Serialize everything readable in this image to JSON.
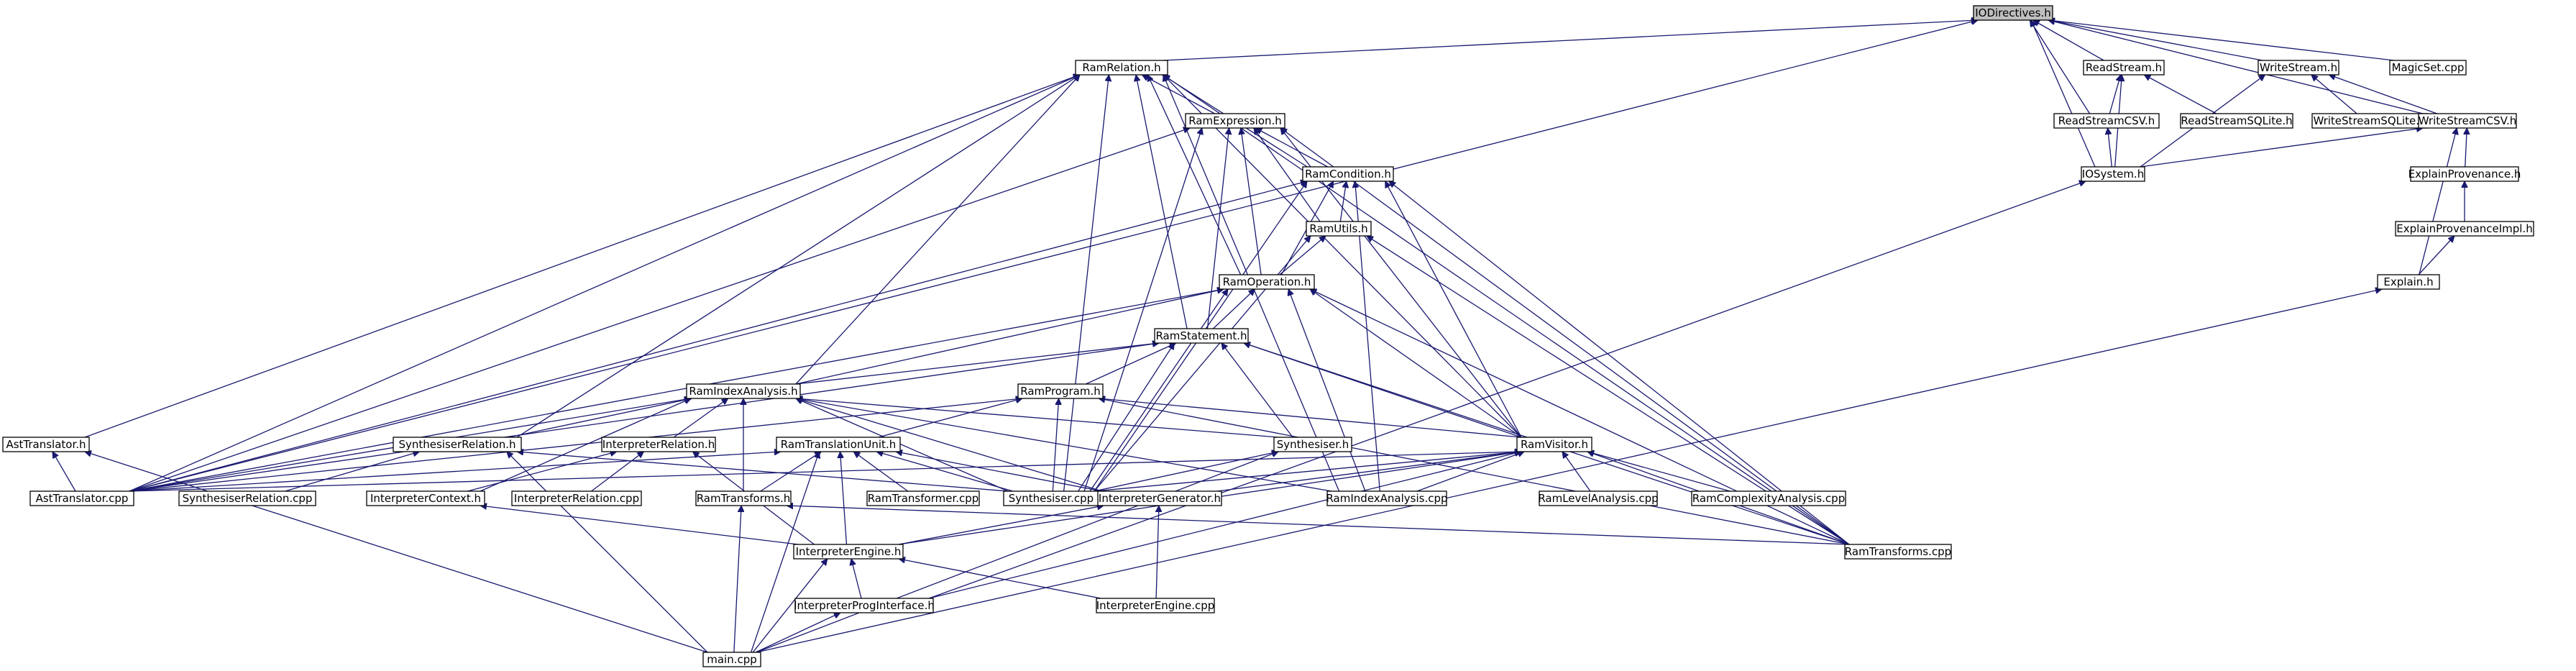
{
  "nodes": [
    {
      "id": "iodirectives",
      "label": "IODirectives.h",
      "root": true
    },
    {
      "id": "ramrelation",
      "label": "RamRelation.h"
    },
    {
      "id": "readstream",
      "label": "ReadStream.h"
    },
    {
      "id": "writestream",
      "label": "WriteStream.h"
    },
    {
      "id": "magicset",
      "label": "MagicSet.cpp"
    },
    {
      "id": "ramexpression",
      "label": "RamExpression.h"
    },
    {
      "id": "readstreamcsv",
      "label": "ReadStreamCSV.h"
    },
    {
      "id": "readstreamsqlite",
      "label": "ReadStreamSQLite.h"
    },
    {
      "id": "writestreamsqlite",
      "label": "WriteStreamSQLite.h"
    },
    {
      "id": "writestreamcsv",
      "label": "WriteStreamCSV.h"
    },
    {
      "id": "ramcondition",
      "label": "RamCondition.h"
    },
    {
      "id": "iosystem",
      "label": "IOSystem.h"
    },
    {
      "id": "explainprovenance",
      "label": "ExplainProvenance.h"
    },
    {
      "id": "ramutils",
      "label": "RamUtils.h"
    },
    {
      "id": "explainprovenanceimpl",
      "label": "ExplainProvenanceImpl.h"
    },
    {
      "id": "ramoperation",
      "label": "RamOperation.h"
    },
    {
      "id": "explain",
      "label": "Explain.h"
    },
    {
      "id": "ramstatement",
      "label": "RamStatement.h"
    },
    {
      "id": "ramindexanalysish",
      "label": "RamIndexAnalysis.h"
    },
    {
      "id": "ramprogram",
      "label": "RamProgram.h"
    },
    {
      "id": "asttranslatorh",
      "label": "AstTranslator.h"
    },
    {
      "id": "synthrelationh",
      "label": "SynthesiserRelation.h"
    },
    {
      "id": "interprelationh",
      "label": "InterpreterRelation.h"
    },
    {
      "id": "ramtranslationunit",
      "label": "RamTranslationUnit.h"
    },
    {
      "id": "synthesiserh",
      "label": "Synthesiser.h"
    },
    {
      "id": "ramvisitor",
      "label": "RamVisitor.h"
    },
    {
      "id": "asttranslatorcpp",
      "label": "AstTranslator.cpp"
    },
    {
      "id": "synthrelationcpp",
      "label": "SynthesiserRelation.cpp"
    },
    {
      "id": "interpcontext",
      "label": "InterpreterContext.h"
    },
    {
      "id": "interprelationcpp",
      "label": "InterpreterRelation.cpp"
    },
    {
      "id": "ramtransformsh",
      "label": "RamTransforms.h"
    },
    {
      "id": "ramtransformercpp",
      "label": "RamTransformer.cpp"
    },
    {
      "id": "synthesisercpp",
      "label": "Synthesiser.cpp"
    },
    {
      "id": "interpgenerator",
      "label": "InterpreterGenerator.h"
    },
    {
      "id": "ramindexanalysiscpp",
      "label": "RamIndexAnalysis.cpp"
    },
    {
      "id": "ramlevelanalysis",
      "label": "RamLevelAnalysis.cpp"
    },
    {
      "id": "ramcomplexity",
      "label": "RamComplexityAnalysis.cpp"
    },
    {
      "id": "ramtransformscpp",
      "label": "RamTransforms.cpp"
    },
    {
      "id": "interpengineh",
      "label": "InterpreterEngine.h"
    },
    {
      "id": "interpproginterface",
      "label": "InterpreterProgInterface.h"
    },
    {
      "id": "interpenginecpp",
      "label": "InterpreterEngine.cpp"
    },
    {
      "id": "maincpp",
      "label": "main.cpp"
    }
  ],
  "edges": [
    [
      "iodirectives",
      "ramrelation"
    ],
    [
      "iodirectives",
      "readstream"
    ],
    [
      "iodirectives",
      "writestream"
    ],
    [
      "iodirectives",
      "magicset"
    ],
    [
      "iodirectives",
      "readstreamcsv"
    ],
    [
      "iodirectives",
      "writestreamcsv"
    ],
    [
      "iodirectives",
      "iosystem"
    ],
    [
      "iodirectives",
      "asttranslatorcpp"
    ],
    [
      "ramrelation",
      "ramexpression"
    ],
    [
      "ramrelation",
      "ramcondition"
    ],
    [
      "ramrelation",
      "ramoperation"
    ],
    [
      "ramrelation",
      "ramstatement"
    ],
    [
      "ramrelation",
      "ramindexanalysish"
    ],
    [
      "ramrelation",
      "asttranslatorh"
    ],
    [
      "ramrelation",
      "synthrelationh"
    ],
    [
      "ramrelation",
      "ramvisitor"
    ],
    [
      "ramrelation",
      "asttranslatorcpp"
    ],
    [
      "ramrelation",
      "synthesisercpp"
    ],
    [
      "ramrelation",
      "ramtransformscpp"
    ],
    [
      "ramrelation",
      "ramindexanalysiscpp"
    ],
    [
      "readstream",
      "readstreamcsv"
    ],
    [
      "readstream",
      "readstreamsqlite"
    ],
    [
      "readstream",
      "iosystem"
    ],
    [
      "writestream",
      "writestreamsqlite"
    ],
    [
      "writestream",
      "writestreamcsv"
    ],
    [
      "writestream",
      "iosystem"
    ],
    [
      "readstreamcsv",
      "iosystem"
    ],
    [
      "writestreamcsv",
      "iosystem"
    ],
    [
      "writestreamcsv",
      "explainprovenance"
    ],
    [
      "writestreamcsv",
      "explain"
    ],
    [
      "explainprovenance",
      "explainprovenanceimpl"
    ],
    [
      "explainprovenanceimpl",
      "explain"
    ],
    [
      "explain",
      "maincpp"
    ],
    [
      "iosystem",
      "interpproginterface"
    ],
    [
      "ramexpression",
      "ramcondition"
    ],
    [
      "ramexpression",
      "ramutils"
    ],
    [
      "ramexpression",
      "ramoperation"
    ],
    [
      "ramexpression",
      "ramstatement"
    ],
    [
      "ramexpression",
      "ramvisitor"
    ],
    [
      "ramexpression",
      "asttranslatorcpp"
    ],
    [
      "ramexpression",
      "synthesisercpp"
    ],
    [
      "ramexpression",
      "ramtransformscpp"
    ],
    [
      "ramcondition",
      "ramutils"
    ],
    [
      "ramcondition",
      "ramoperation"
    ],
    [
      "ramcondition",
      "ramvisitor"
    ],
    [
      "ramcondition",
      "asttranslatorcpp"
    ],
    [
      "ramcondition",
      "synthesisercpp"
    ],
    [
      "ramcondition",
      "ramindexanalysiscpp"
    ],
    [
      "ramcondition",
      "ramtransformscpp"
    ],
    [
      "ramutils",
      "ramoperation"
    ],
    [
      "ramutils",
      "synthesisercpp"
    ],
    [
      "ramutils",
      "ramtransformscpp"
    ],
    [
      "ramoperation",
      "ramstatement"
    ],
    [
      "ramoperation",
      "ramindexanalysish"
    ],
    [
      "ramoperation",
      "ramvisitor"
    ],
    [
      "ramoperation",
      "asttranslatorcpp"
    ],
    [
      "ramoperation",
      "synthesisercpp"
    ],
    [
      "ramoperation",
      "ramindexanalysiscpp"
    ],
    [
      "ramoperation",
      "ramtransformscpp"
    ],
    [
      "ramstatement",
      "ramindexanalysish"
    ],
    [
      "ramstatement",
      "ramprogram"
    ],
    [
      "ramstatement",
      "synthesiserh"
    ],
    [
      "ramstatement",
      "ramvisitor"
    ],
    [
      "ramstatement",
      "asttranslatorcpp"
    ],
    [
      "ramstatement",
      "synthesisercpp"
    ],
    [
      "ramstatement",
      "ramtransformscpp"
    ],
    [
      "ramindexanalysish",
      "synthrelationh"
    ],
    [
      "ramindexanalysish",
      "interprelationh"
    ],
    [
      "ramindexanalysish",
      "ramtransformsh"
    ],
    [
      "ramindexanalysish",
      "interpcontext"
    ],
    [
      "ramindexanalysish",
      "asttranslatorcpp"
    ],
    [
      "ramindexanalysish",
      "synthesisercpp"
    ],
    [
      "ramindexanalysish",
      "ramindexanalysiscpp"
    ],
    [
      "ramindexanalysish",
      "interpgenerator"
    ],
    [
      "ramindexanalysish",
      "synthesiserh"
    ],
    [
      "ramprogram",
      "ramtranslationunit"
    ],
    [
      "ramprogram",
      "ramvisitor"
    ],
    [
      "ramprogram",
      "synthesisercpp"
    ],
    [
      "ramprogram",
      "asttranslatorcpp"
    ],
    [
      "ramprogram",
      "ramtransformscpp"
    ],
    [
      "asttranslatorh",
      "asttranslatorcpp"
    ],
    [
      "asttranslatorh",
      "maincpp"
    ],
    [
      "synthrelationh",
      "synthrelationcpp"
    ],
    [
      "synthrelationh",
      "synthesisercpp"
    ],
    [
      "synthrelationh",
      "maincpp"
    ],
    [
      "interprelationh",
      "interpcontext"
    ],
    [
      "interprelationh",
      "interprelationcpp"
    ],
    [
      "interprelationh",
      "interpengineh"
    ],
    [
      "ramtranslationunit",
      "asttranslatorcpp"
    ],
    [
      "ramtranslationunit",
      "ramtransformsh"
    ],
    [
      "ramtranslationunit",
      "ramtransformercpp"
    ],
    [
      "ramtranslationunit",
      "synthesisercpp"
    ],
    [
      "ramtranslationunit",
      "interpengineh"
    ],
    [
      "ramtranslationunit",
      "maincpp"
    ],
    [
      "ramtranslationunit",
      "interpgenerator"
    ],
    [
      "synthesiserh",
      "synthesisercpp"
    ],
    [
      "synthesiserh",
      "maincpp"
    ],
    [
      "ramvisitor",
      "asttranslatorcpp"
    ],
    [
      "ramvisitor",
      "synthesisercpp"
    ],
    [
      "ramvisitor",
      "ramindexanalysiscpp"
    ],
    [
      "ramvisitor",
      "ramlevelanalysis"
    ],
    [
      "ramvisitor",
      "ramcomplexity"
    ],
    [
      "ramvisitor",
      "ramtransformscpp"
    ],
    [
      "ramvisitor",
      "interpgenerator"
    ],
    [
      "ramvisitor",
      "interpengineh"
    ],
    [
      "ramvisitor",
      "interpproginterface"
    ],
    [
      "interpcontext",
      "interpengineh"
    ],
    [
      "ramtransformsh",
      "maincpp"
    ],
    [
      "ramtransformsh",
      "ramtransformscpp"
    ],
    [
      "interpgenerator",
      "interpengineh"
    ],
    [
      "interpgenerator",
      "interpenginecpp"
    ],
    [
      "interpengineh",
      "interpproginterface"
    ],
    [
      "interpengineh",
      "interpenginecpp"
    ],
    [
      "interpengineh",
      "maincpp"
    ],
    [
      "interpproginterface",
      "maincpp"
    ]
  ]
}
